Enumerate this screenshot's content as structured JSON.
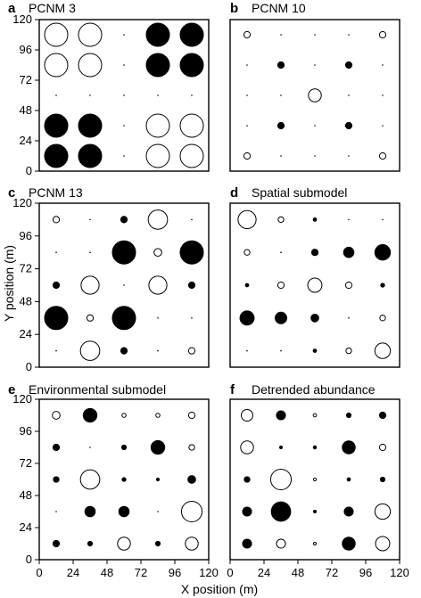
{
  "chart_data": {
    "type": "scatter",
    "encoding": "bubble: radius is proportional to |value|; filled circles are positive, open circles are negative",
    "xlabel": "X position (m)",
    "ylabel": "Y position (m)",
    "xlim": [
      0,
      120
    ],
    "ylim": [
      0,
      120
    ],
    "xticks": [
      0,
      24,
      48,
      72,
      96,
      120
    ],
    "yticks": [
      0,
      24,
      48,
      72,
      96,
      120
    ],
    "x": [
      12,
      36,
      60,
      84,
      108
    ],
    "y": [
      12,
      36,
      60,
      84,
      108
    ],
    "panels": [
      {
        "letter": "a",
        "title": "PCNM 3",
        "values": [
          [
            -9,
            -9,
            0,
            9,
            9
          ],
          [
            -9,
            -9,
            0,
            9,
            9
          ],
          [
            0,
            0,
            0,
            0,
            0
          ],
          [
            9,
            9,
            0,
            -9,
            -9
          ],
          [
            9,
            9,
            0,
            -9,
            -9
          ]
        ]
      },
      {
        "letter": "b",
        "title": "PCNM 10",
        "values": [
          [
            -2.5,
            0,
            0,
            0,
            -2.5
          ],
          [
            0,
            2.5,
            0,
            2.5,
            0
          ],
          [
            0,
            0,
            -5,
            0,
            0
          ],
          [
            0,
            2.5,
            0,
            2.5,
            0
          ],
          [
            -2.5,
            0,
            0,
            0,
            -2.5
          ]
        ]
      },
      {
        "letter": "c",
        "title": "PCNM 13",
        "values": [
          [
            -2.5,
            0,
            2.5,
            -7.5,
            0
          ],
          [
            0,
            0,
            9,
            -3,
            9
          ],
          [
            2.5,
            -7,
            0,
            -7,
            2.5
          ],
          [
            9,
            -2.5,
            9,
            0,
            0
          ],
          [
            0,
            -7.5,
            2.5,
            0,
            -2.5
          ]
        ]
      },
      {
        "letter": "d",
        "title": "Spatial submodel",
        "values": [
          [
            -7,
            -2.2,
            1.3,
            0,
            0
          ],
          [
            -2.2,
            0,
            2.5,
            4,
            6
          ],
          [
            1.3,
            -2.5,
            -5.5,
            -2.5,
            1.5
          ],
          [
            5.5,
            4.5,
            3,
            0,
            -2.2
          ],
          [
            0,
            0,
            1.3,
            -2.2,
            -6
          ]
        ]
      },
      {
        "letter": "e",
        "title": "Environmental submodel",
        "values": [
          [
            -3,
            5.3,
            -1.6,
            -1.6,
            -2.5
          ],
          [
            2.5,
            0,
            1.8,
            5.3,
            -2.2
          ],
          [
            2.2,
            -7.5,
            1.5,
            1.1,
            3
          ],
          [
            0,
            4,
            4,
            0,
            -8
          ],
          [
            2.5,
            1.8,
            -5,
            1.8,
            -5
          ]
        ]
      },
      {
        "letter": "f",
        "title": "Detrended abundance",
        "values": [
          [
            -4.5,
            3.5,
            -1.3,
            1.8,
            2.5
          ],
          [
            -5,
            0.9,
            1.2,
            5,
            -2.5
          ],
          [
            2.2,
            -8,
            -1.1,
            1.3,
            1.8
          ],
          [
            3.5,
            7.5,
            0.9,
            3.5,
            -6
          ],
          [
            3.5,
            -3.5,
            -0.8,
            5,
            -5.5
          ]
        ]
      }
    ]
  }
}
